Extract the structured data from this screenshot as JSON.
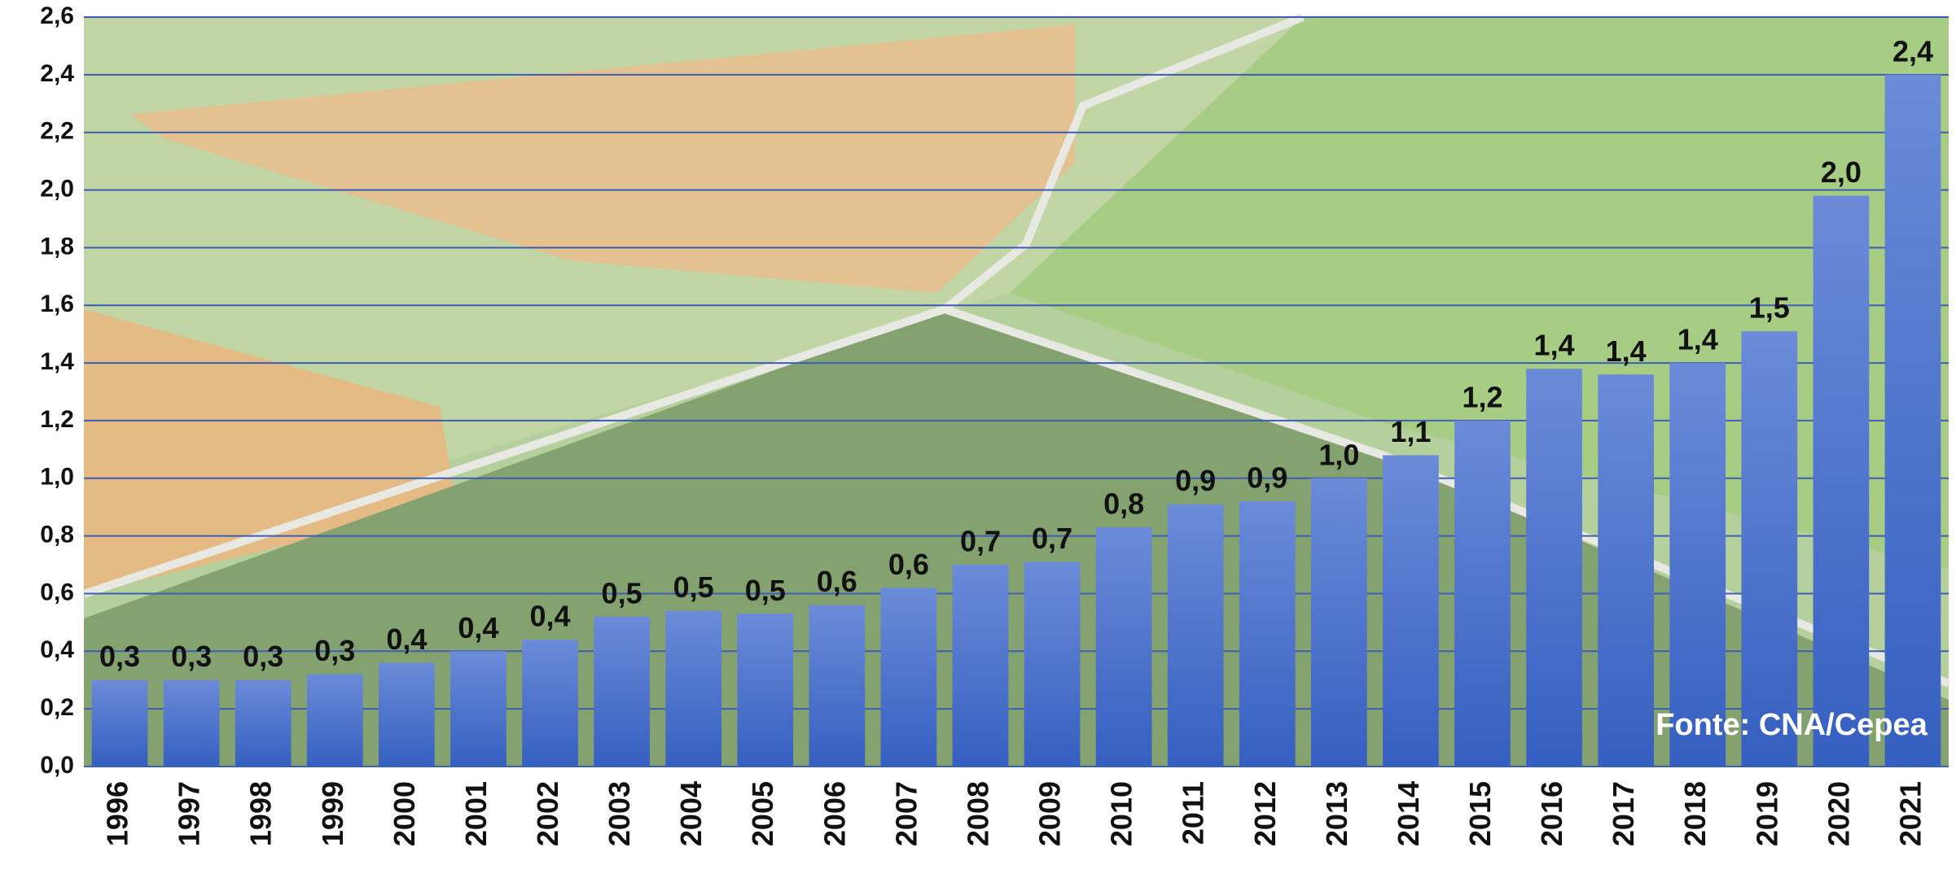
{
  "chart_data": {
    "type": "bar",
    "categories": [
      "1996",
      "1997",
      "1998",
      "1999",
      "2000",
      "2001",
      "2002",
      "2003",
      "2004",
      "2005",
      "2006",
      "2007",
      "2008",
      "2009",
      "2010",
      "2011",
      "2012",
      "2013",
      "2014",
      "2015",
      "2016",
      "2017",
      "2018",
      "2019",
      "2020",
      "2021"
    ],
    "values": [
      0.3,
      0.3,
      0.3,
      0.32,
      0.36,
      0.4,
      0.44,
      0.52,
      0.54,
      0.53,
      0.56,
      0.62,
      0.7,
      0.71,
      0.83,
      0.91,
      0.92,
      1.0,
      1.08,
      1.2,
      1.38,
      1.36,
      1.4,
      1.51,
      1.98,
      2.4
    ],
    "value_labels": [
      "0,3",
      "0,3",
      "0,3",
      "0,3",
      "0,4",
      "0,4",
      "0,4",
      "0,5",
      "0,5",
      "0,5",
      "0,6",
      "0,6",
      "0,7",
      "0,7",
      "0,8",
      "0,9",
      "0,9",
      "1,0",
      "1,1",
      "1,2",
      "1,4",
      "1,4",
      "1,4",
      "1,5",
      "2,0",
      "2,4"
    ],
    "color": "#4a6fcb",
    "ylim": [
      0,
      2.6
    ],
    "yticks": [
      {
        "value": 0,
        "label": "0,0"
      },
      {
        "value": 0.2,
        "label": "0,2"
      },
      {
        "value": 0.4,
        "label": "0,4"
      },
      {
        "value": 0.6,
        "label": "0,6"
      },
      {
        "value": 0.8,
        "label": "0,8"
      },
      {
        "value": 1.0,
        "label": "1,0"
      },
      {
        "value": 1.2,
        "label": "1,2"
      },
      {
        "value": 1.4,
        "label": "1,4"
      },
      {
        "value": 1.6,
        "label": "1,6"
      },
      {
        "value": 1.8,
        "label": "1,8"
      },
      {
        "value": 2.0,
        "label": "2,0"
      },
      {
        "value": 2.2,
        "label": "2,2"
      },
      {
        "value": 2.4,
        "label": "2,4"
      },
      {
        "value": 2.6,
        "label": "2,6"
      }
    ],
    "grid": true,
    "annotation": "Fonte: CNA/Cepea"
  }
}
